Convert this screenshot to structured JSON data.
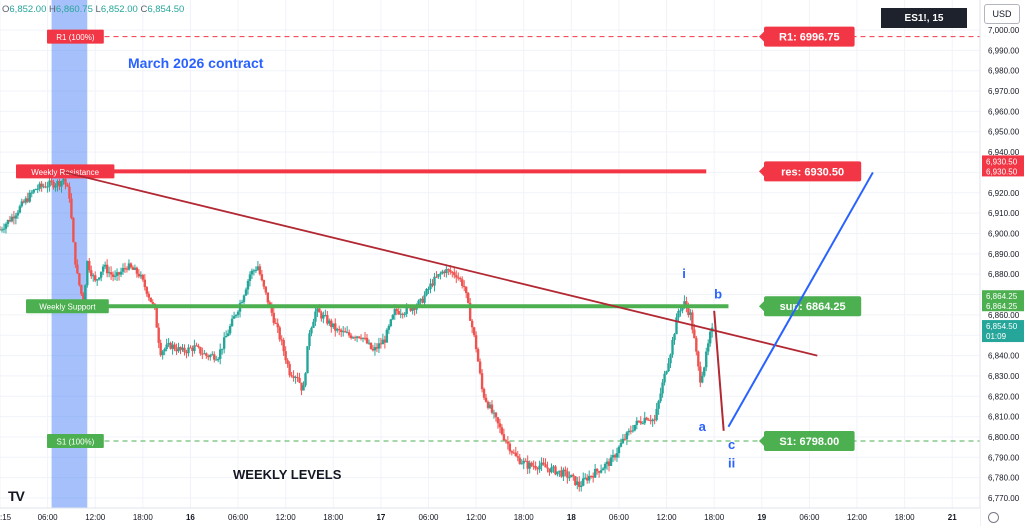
{
  "ohlc": {
    "o_label": "O",
    "o": "6,852.00",
    "h_label": "H",
    "h": "6,860.75",
    "l_label": "L",
    "l": "6,852.00",
    "c_label": "C",
    "c": "6,854.50"
  },
  "symbol": "ES1!, 15",
  "currency": "USD",
  "title": "March 2026 contract",
  "footer_title": "WEEKLY LEVELS",
  "chart_data": {
    "type": "candlestick",
    "title": "March 2026 contract",
    "ylim": [
      6765,
      7005
    ],
    "y_ticks": [
      7000,
      6990,
      6980,
      6970,
      6960,
      6950,
      6940,
      6930,
      6920,
      6910,
      6900,
      6890,
      6880,
      6870,
      6860,
      6850,
      6840,
      6830,
      6820,
      6810,
      6800,
      6790,
      6780,
      6770
    ],
    "y_tick_labels": [
      "7,000.00",
      "6,990.00",
      "6,980.00",
      "6,970.00",
      "6,960.00",
      "6,950.00",
      "6,940.00",
      "6,930.00",
      "6,920.00",
      "6,910.00",
      "6,900.00",
      "6,890.00",
      "6,880.00",
      "6,870.00",
      "6,860.00",
      "6,850.00",
      "6,840.00",
      "6,830.00",
      "6,820.00",
      "6,810.00",
      "6,800.00",
      "6,790.00",
      "6,780.00",
      "6,770.00"
    ],
    "x_ticks": [
      {
        "label": ":15",
        "x": 0
      },
      {
        "label": "06:00",
        "x": 0.6
      },
      {
        "label": "12:00",
        "x": 1.2
      },
      {
        "label": "18:00",
        "x": 1.8
      },
      {
        "label": "16",
        "x": 2.4
      },
      {
        "label": "06:00",
        "x": 3.0
      },
      {
        "label": "12:00",
        "x": 3.6
      },
      {
        "label": "18:00",
        "x": 4.2
      },
      {
        "label": "17",
        "x": 4.8
      },
      {
        "label": "06:00",
        "x": 5.4
      },
      {
        "label": "12:00",
        "x": 6.0
      },
      {
        "label": "18:00",
        "x": 6.6
      },
      {
        "label": "18",
        "x": 7.2
      },
      {
        "label": "06:00",
        "x": 7.8
      },
      {
        "label": "12:00",
        "x": 8.4
      },
      {
        "label": "18:00",
        "x": 9.0
      },
      {
        "label": "19",
        "x": 9.6
      },
      {
        "label": "06:00",
        "x": 10.2
      },
      {
        "label": "12:00",
        "x": 10.8
      },
      {
        "label": "18:00",
        "x": 11.4
      },
      {
        "label": "21",
        "x": 12.0
      }
    ],
    "xlim": [
      0,
      12.35
    ],
    "price_path": [
      [
        0.0,
        6902
      ],
      [
        0.15,
        6908
      ],
      [
        0.3,
        6915
      ],
      [
        0.45,
        6922
      ],
      [
        0.6,
        6924
      ],
      [
        0.75,
        6925
      ],
      [
        0.8,
        6927
      ],
      [
        0.88,
        6918
      ],
      [
        0.92,
        6896
      ],
      [
        0.97,
        6880
      ],
      [
        1.05,
        6866
      ],
      [
        1.1,
        6886
      ],
      [
        1.2,
        6876
      ],
      [
        1.3,
        6884
      ],
      [
        1.45,
        6878
      ],
      [
        1.6,
        6884
      ],
      [
        1.75,
        6880
      ],
      [
        1.85,
        6872
      ],
      [
        1.95,
        6862
      ],
      [
        2.02,
        6842
      ],
      [
        2.15,
        6845
      ],
      [
        2.3,
        6842
      ],
      [
        2.45,
        6844
      ],
      [
        2.6,
        6840
      ],
      [
        2.75,
        6840
      ],
      [
        2.9,
        6854
      ],
      [
        3.05,
        6868
      ],
      [
        3.15,
        6880
      ],
      [
        3.25,
        6884
      ],
      [
        3.3,
        6876
      ],
      [
        3.45,
        6858
      ],
      [
        3.55,
        6846
      ],
      [
        3.65,
        6832
      ],
      [
        3.75,
        6830
      ],
      [
        3.82,
        6822
      ],
      [
        3.9,
        6852
      ],
      [
        3.98,
        6862
      ],
      [
        4.1,
        6858
      ],
      [
        4.25,
        6852
      ],
      [
        4.4,
        6850
      ],
      [
        4.55,
        6850
      ],
      [
        4.7,
        6842
      ],
      [
        4.85,
        6848
      ],
      [
        4.98,
        6862
      ],
      [
        5.1,
        6862
      ],
      [
        5.3,
        6866
      ],
      [
        5.45,
        6876
      ],
      [
        5.6,
        6882
      ],
      [
        5.75,
        6880
      ],
      [
        5.85,
        6874
      ],
      [
        5.92,
        6860
      ],
      [
        6.0,
        6844
      ],
      [
        6.08,
        6822
      ],
      [
        6.2,
        6812
      ],
      [
        6.35,
        6800
      ],
      [
        6.5,
        6790
      ],
      [
        6.65,
        6786
      ],
      [
        6.8,
        6786
      ],
      [
        6.95,
        6784
      ],
      [
        7.1,
        6782
      ],
      [
        7.2,
        6780
      ],
      [
        7.3,
        6776
      ],
      [
        7.4,
        6780
      ],
      [
        7.55,
        6784
      ],
      [
        7.7,
        6788
      ],
      [
        7.85,
        6798
      ],
      [
        8.0,
        6806
      ],
      [
        8.15,
        6810
      ],
      [
        8.25,
        6808
      ],
      [
        8.35,
        6826
      ],
      [
        8.45,
        6842
      ],
      [
        8.55,
        6862
      ],
      [
        8.62,
        6866
      ],
      [
        8.7,
        6860
      ],
      [
        8.76,
        6845
      ],
      [
        8.82,
        6828
      ],
      [
        8.88,
        6836
      ],
      [
        8.95,
        6850
      ],
      [
        9.0,
        6854
      ]
    ],
    "levels": [
      {
        "name": "R1 (100%)",
        "value": 6996.75,
        "tag": "R1: 6996.75",
        "style": "dashed",
        "color": "#f23645"
      },
      {
        "name": "Weekly Resistance",
        "value": 6930.5,
        "tag": "res: 6930.50",
        "style": "solid",
        "color": "#f23645"
      },
      {
        "name": "Weekly Support",
        "value": 6864.25,
        "tag": "sup: 6864.25",
        "style": "solid",
        "color": "#4caf50"
      },
      {
        "name": "S1 (100%)",
        "value": 6798.0,
        "tag": "S1: 6798.00",
        "style": "dashed",
        "color": "#4caf50"
      }
    ],
    "axis_badges": [
      {
        "value": 6930.5,
        "text": "6,930.50",
        "color": "#f23645"
      },
      {
        "value": 6864.25,
        "text": "6,864.25",
        "color": "#4caf50"
      },
      {
        "value": 6854.5,
        "text": "6,854.50",
        "sub": "01:09",
        "color": "#26a69a"
      }
    ],
    "trendline": {
      "from": [
        0.82,
        6930
      ],
      "to": [
        10.3,
        6840
      ],
      "color": "#b22833"
    },
    "projection": [
      {
        "from": [
          9.0,
          6862
        ],
        "to": [
          9.12,
          6803
        ],
        "color": "#b22833"
      },
      {
        "from": [
          9.18,
          6805
        ],
        "to": [
          11.0,
          6930
        ],
        "color": "#2962ff"
      }
    ],
    "wave_labels": [
      {
        "text": "i",
        "x": 8.62,
        "y": 6878
      },
      {
        "text": "b",
        "x": 9.05,
        "y": 6868
      },
      {
        "text": "a",
        "x": 8.85,
        "y": 6803
      },
      {
        "text": "c",
        "x": 9.22,
        "y": 6794
      },
      {
        "text": "ii",
        "x": 9.22,
        "y": 6785
      }
    ],
    "highlight_band": {
      "x_from": 0.65,
      "x_to": 1.1
    },
    "annotations": [
      "March 2026 contract",
      "WEEKLY LEVELS"
    ]
  },
  "colors": {
    "up": "#26a69a",
    "down": "#ef5350",
    "axis_text": "#131722",
    "grid": "#f0f3fa",
    "band": "#5b8cf5"
  },
  "icons": {
    "logo": "tradingview-logo-icon",
    "settings": "gear-icon"
  },
  "logo_text": "TV"
}
